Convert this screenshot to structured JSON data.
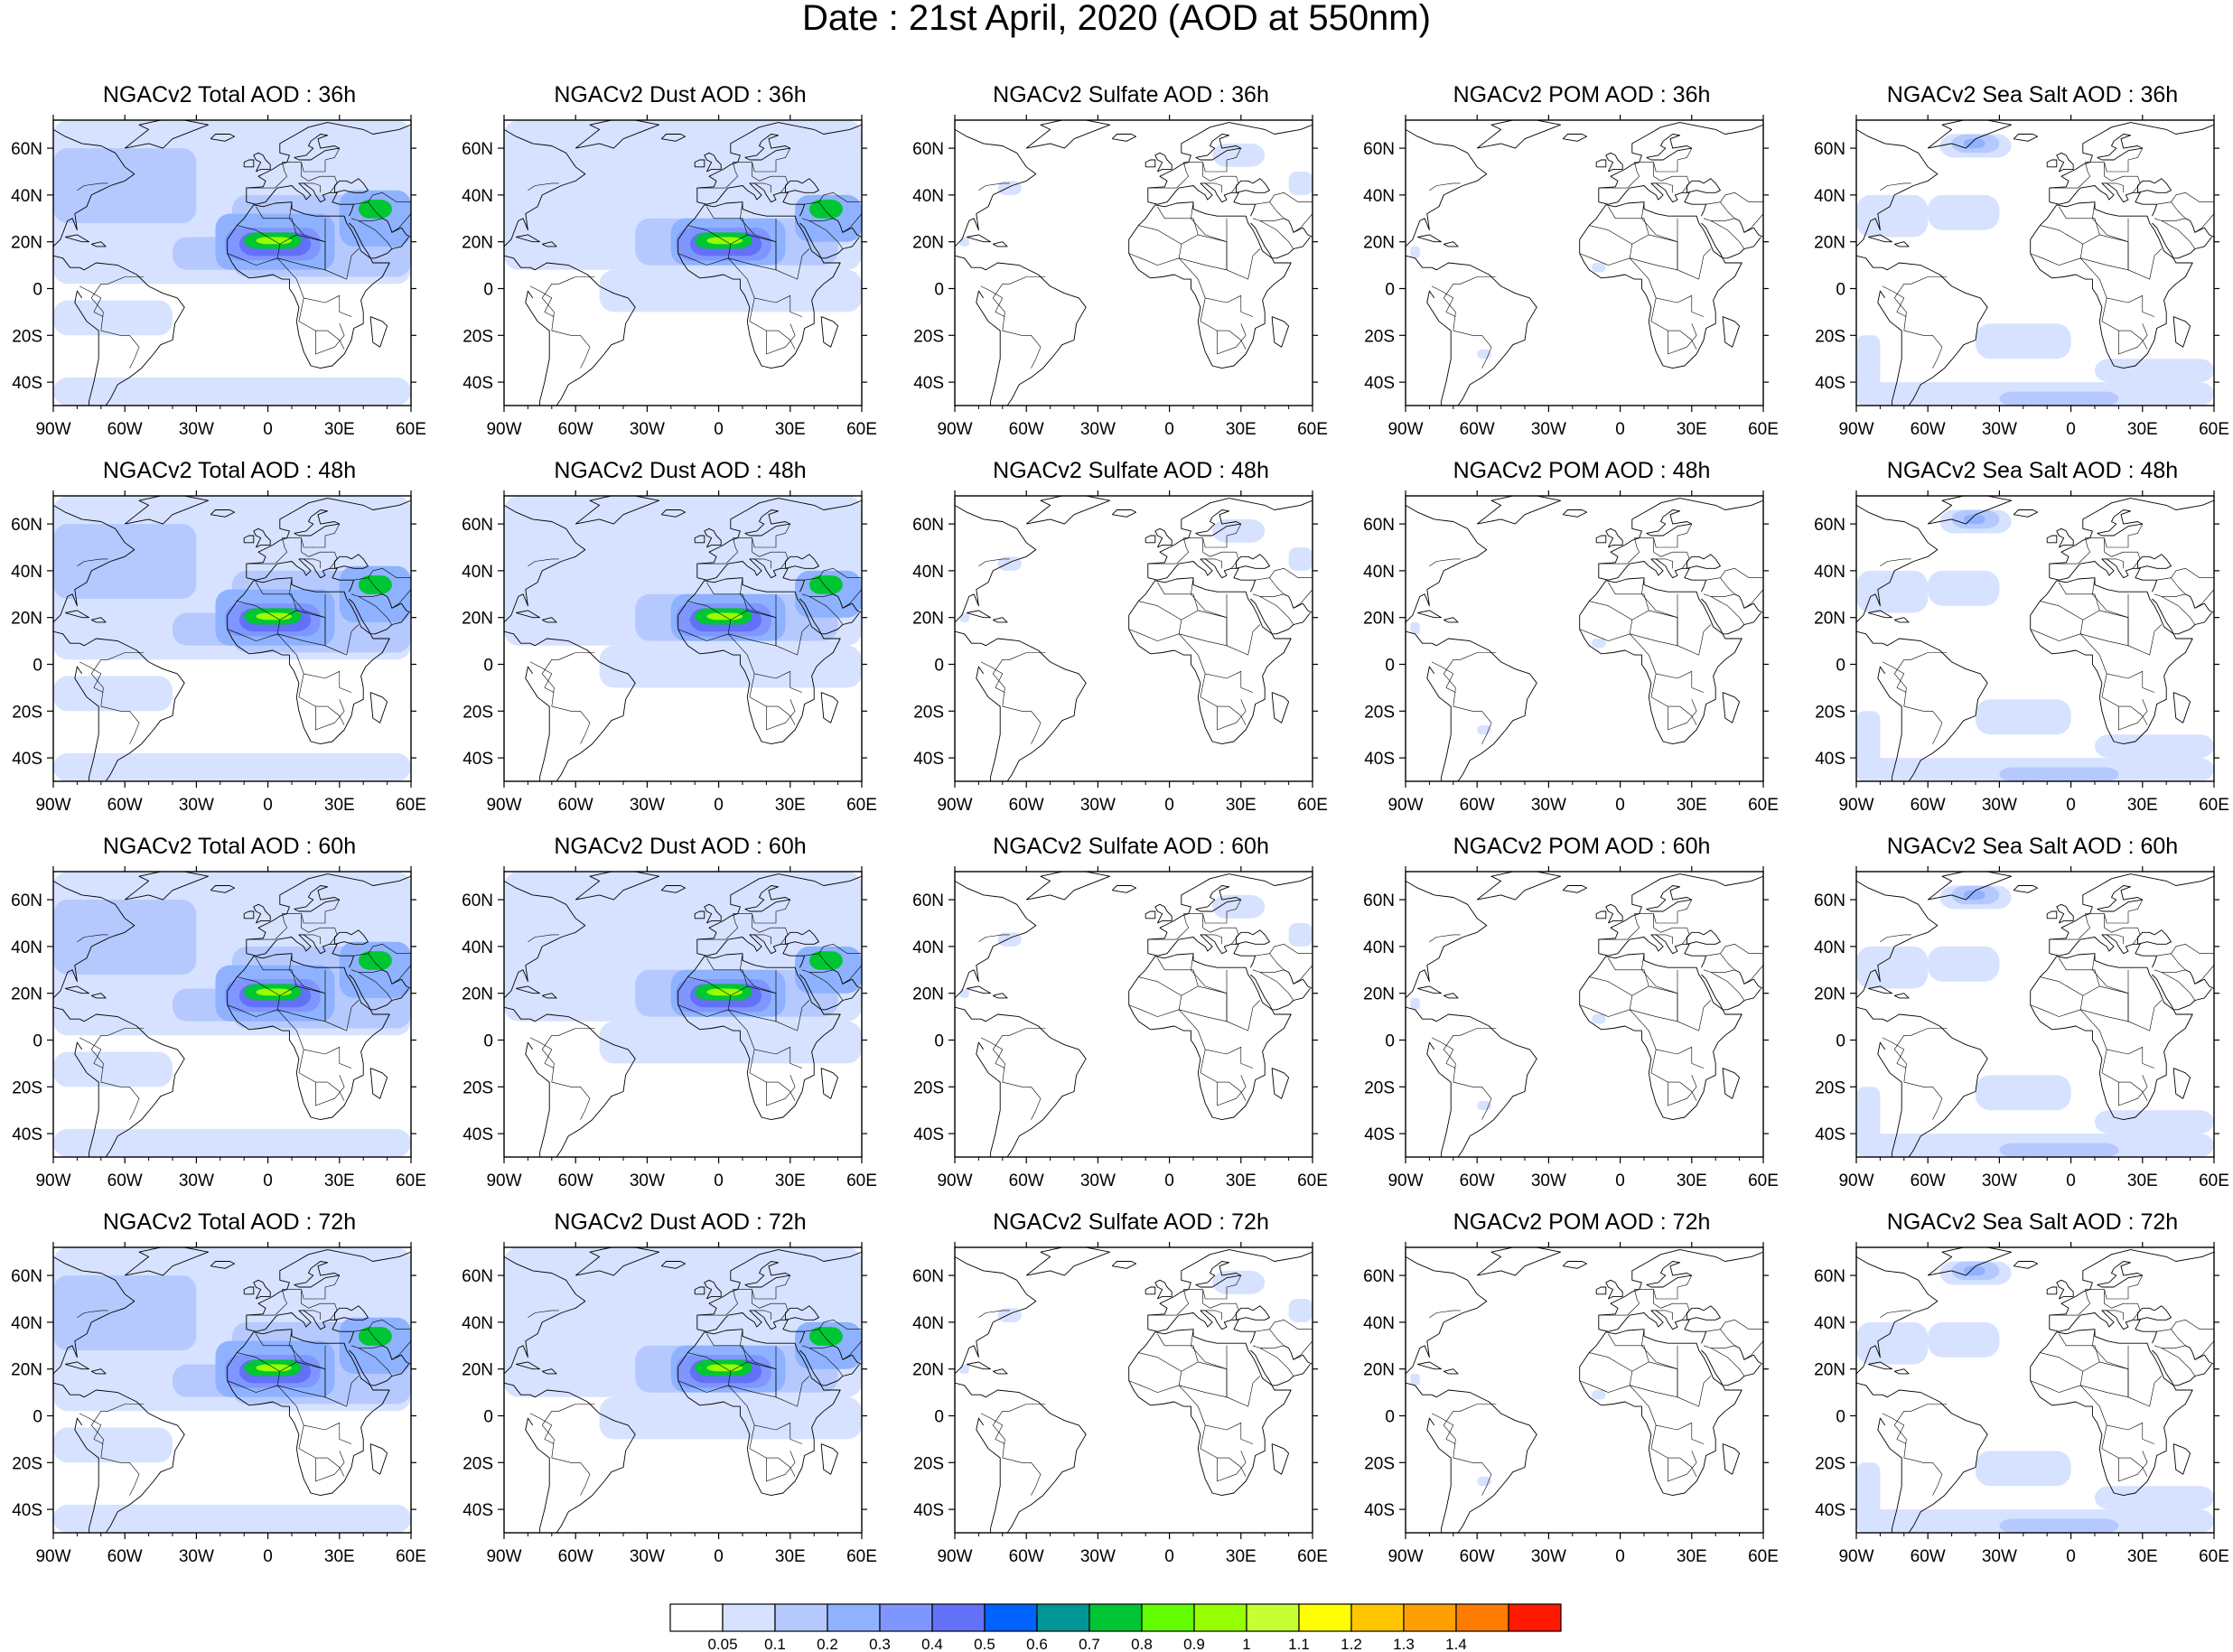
{
  "title": "Date : 21st April, 2020 (AOD at 550nm)",
  "lon_labels": [
    "90W",
    "60W",
    "30W",
    "0",
    "30E",
    "60E"
  ],
  "lat_labels": [
    "60N",
    "40N",
    "20N",
    "0",
    "20S",
    "40S"
  ],
  "species": [
    {
      "key": "total",
      "name": "Total AOD"
    },
    {
      "key": "dust",
      "name": "Dust AOD"
    },
    {
      "key": "sulfate",
      "name": "Sulfate AOD"
    },
    {
      "key": "pom",
      "name": "POM AOD"
    },
    {
      "key": "seasalt",
      "name": "Sea Salt AOD"
    }
  ],
  "forecast_hours": [
    "36h",
    "48h",
    "60h",
    "72h"
  ],
  "panel_titles": [
    [
      "NGACv2 Total AOD : 36h",
      "NGACv2 Dust AOD : 36h",
      "NGACv2 Sulfate AOD : 36h",
      "NGACv2 POM AOD : 36h",
      "NGACv2 Sea Salt AOD : 36h"
    ],
    [
      "NGACv2 Total AOD : 48h",
      "NGACv2 Dust AOD : 48h",
      "NGACv2 Sulfate AOD : 48h",
      "NGACv2 POM AOD : 48h",
      "NGACv2 Sea Salt AOD : 48h"
    ],
    [
      "NGACv2 Total AOD : 60h",
      "NGACv2 Dust AOD : 60h",
      "NGACv2 Sulfate AOD : 60h",
      "NGACv2 POM AOD : 60h",
      "NGACv2 Sea Salt AOD : 60h"
    ],
    [
      "NGACv2 Total AOD : 72h",
      "NGACv2 Dust AOD : 72h",
      "NGACv2 Sulfate AOD : 72h",
      "NGACv2 POM AOD : 72h",
      "NGACv2 Sea Salt  AOD : 72h"
    ]
  ],
  "colorbar": {
    "labels": [
      "0.05",
      "0.1",
      "0.2",
      "0.3",
      "0.4",
      "0.5",
      "0.6",
      "0.7",
      "0.8",
      "0.9",
      "1",
      "1.1",
      "1.2",
      "1.3",
      "1.4"
    ],
    "colors": [
      "#ffffff",
      "#d6e2ff",
      "#b5c9ff",
      "#8eb2ff",
      "#7f96ff",
      "#6370f8",
      "#0063ff",
      "#009696",
      "#00c633",
      "#63ff00",
      "#96ff00",
      "#c6ff33",
      "#ffff00",
      "#ffc600",
      "#ffa000",
      "#ff7c00",
      "#ff1900"
    ]
  }
}
